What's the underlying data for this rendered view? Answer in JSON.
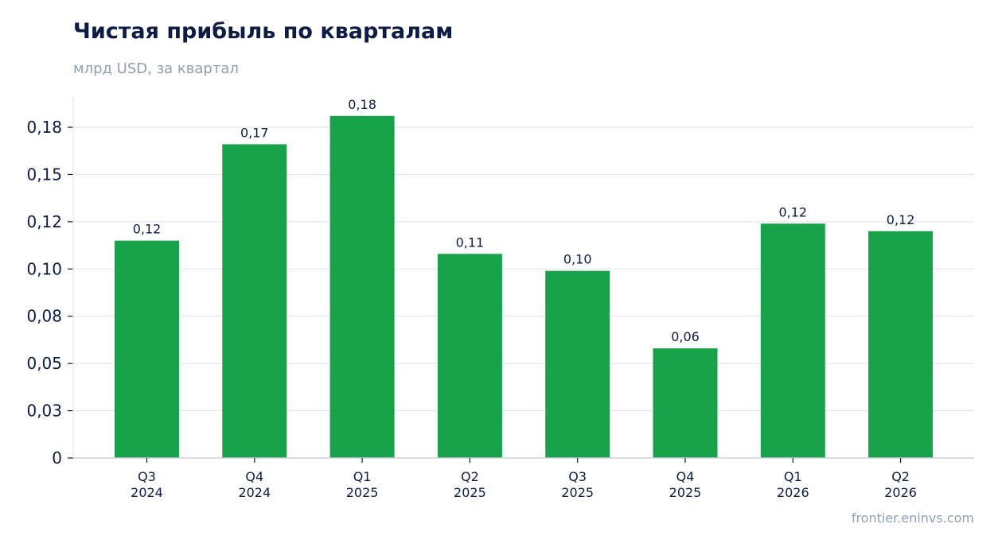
{
  "header": {
    "title": "Чистая прибыль по кварталам",
    "subtitle": "млрд USD, за квартал"
  },
  "footer": {
    "source": "frontier.eninvs.com"
  },
  "colors": {
    "bar": "#18a34a",
    "grid": "#e3e7ef",
    "axis": "#c9ced8",
    "text": "#0d1b45"
  },
  "chart_data": {
    "type": "bar",
    "categories": [
      [
        "Q3",
        "2024"
      ],
      [
        "Q4",
        "2024"
      ],
      [
        "Q1",
        "2025"
      ],
      [
        "Q2",
        "2025"
      ],
      [
        "Q3",
        "2025"
      ],
      [
        "Q4",
        "2025"
      ],
      [
        "Q1",
        "2026"
      ],
      [
        "Q2",
        "2026"
      ]
    ],
    "values": [
      0.115,
      0.166,
      0.181,
      0.108,
      0.099,
      0.058,
      0.124,
      0.12
    ],
    "data_labels": [
      "0,12",
      "0,17",
      "0,18",
      "0,11",
      "0,10",
      "0,06",
      "0,12",
      "0,12"
    ],
    "y_ticks": [
      0,
      0.025,
      0.05,
      0.075,
      0.1,
      0.125,
      0.15,
      0.175
    ],
    "y_tick_labels": [
      "0",
      "0,03",
      "0,05",
      "0,08",
      "0,10",
      "0,12",
      "0,15",
      "0,18"
    ],
    "ylim": [
      0,
      0.191
    ],
    "grid": true,
    "legend": "none"
  }
}
